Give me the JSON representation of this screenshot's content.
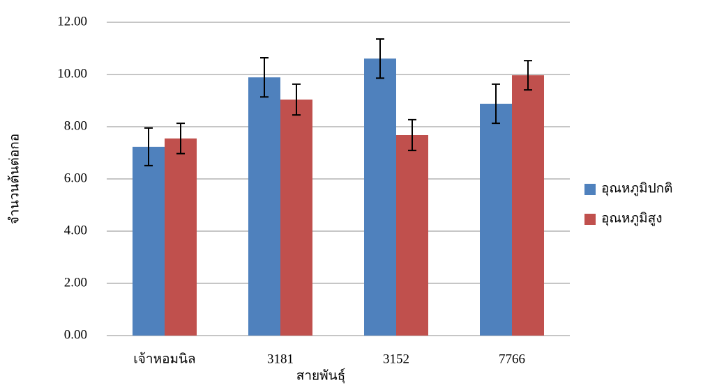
{
  "chart_data": {
    "type": "bar",
    "x_label": "สายพันธุ์",
    "y_label": "จำนวนต้นต่อกอ",
    "categories": [
      "เจ้าหอมนิล",
      "3181",
      "3152",
      "7766"
    ],
    "series": [
      {
        "name": "อุณหภูมิปกติ",
        "color": "#4f81bd",
        "values": [
          7.23,
          9.89,
          10.61,
          8.88
        ],
        "errors": [
          0.72,
          0.75,
          0.75,
          0.75
        ]
      },
      {
        "name": "อุณหภูมิสูง",
        "color": "#c0504d",
        "values": [
          7.55,
          9.04,
          7.68,
          9.97
        ],
        "errors": [
          0.58,
          0.59,
          0.59,
          0.56
        ]
      }
    ],
    "ylim": [
      0,
      12
    ],
    "yticks": [
      {
        "value": 0,
        "label": "0.00"
      },
      {
        "value": 2,
        "label": "2.00"
      },
      {
        "value": 4,
        "label": "4.00"
      },
      {
        "value": 6,
        "label": "6.00"
      },
      {
        "value": 8,
        "label": "8.00"
      },
      {
        "value": 10,
        "label": "10.00"
      },
      {
        "value": 12,
        "label": "12.00"
      }
    ],
    "grid": true,
    "legend": "right"
  }
}
